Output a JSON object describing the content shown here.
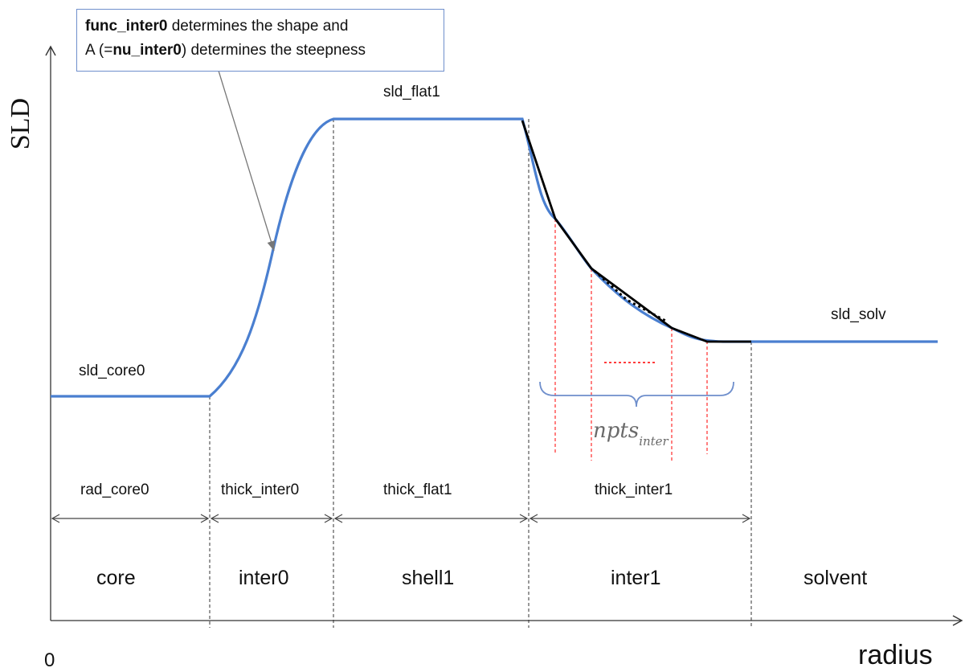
{
  "axes": {
    "y_label": "SLD",
    "x_label": "radius",
    "origin_label": "0"
  },
  "note": {
    "line1_bold": "func_inter0",
    "line1_rest": " determines the shape and",
    "line2_pre": "A (=",
    "line2_bold": "nu_inter0",
    "line2_post": ") determines the steepness"
  },
  "levels": {
    "sld_core0": "sld_core0",
    "sld_flat1": "sld_flat1",
    "sld_solv": "sld_solv"
  },
  "npts": {
    "base": "npts",
    "sub": "inter"
  },
  "thickness_labels": {
    "rad_core0": "rad_core0",
    "thick_inter0": "thick_inter0",
    "thick_flat1": "thick_flat1",
    "thick_inter1": "thick_inter1"
  },
  "regions": {
    "core": "core",
    "inter0": "inter0",
    "shell1": "shell1",
    "inter1": "inter1",
    "solvent": "solvent"
  },
  "colors": {
    "profile": "#4a7fd0",
    "approximation": "#000000",
    "sample_lines": "#ff3b3b",
    "brace": "#6f8fcc",
    "note_border": "#6f8fcc"
  }
}
